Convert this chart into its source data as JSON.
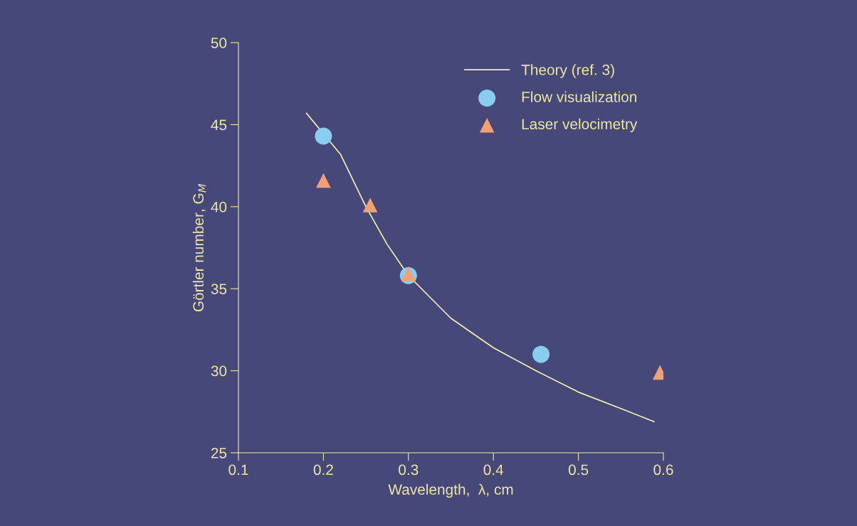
{
  "chart_data": {
    "type": "scatter",
    "xlabel": "Wavelength,  λ, cm",
    "ylabel": "Görtler number, G$_{M}$",
    "xlim": [
      0.1,
      0.6
    ],
    "ylim": [
      25,
      50
    ],
    "xticks": [
      0.1,
      0.2,
      0.3,
      0.4,
      0.5,
      0.6
    ],
    "yticks": [
      25,
      30,
      35,
      40,
      45,
      50
    ],
    "grid": false,
    "legend": "top right",
    "series": [
      {
        "name": "Theory (ref. 3)",
        "type": "line",
        "marker": "none",
        "color": "#f5f0b0",
        "x": [
          0.18,
          0.22,
          0.25,
          0.275,
          0.3,
          0.35,
          0.4,
          0.45,
          0.5,
          0.55,
          0.589
        ],
        "values": [
          45.7,
          43.2,
          40.0,
          37.7,
          35.8,
          33.2,
          31.4,
          30.0,
          28.7,
          27.7,
          26.9
        ]
      },
      {
        "name": "Flow visualization",
        "marker": "circle",
        "color": "#87cef0",
        "x": [
          0.2,
          0.3,
          0.456
        ],
        "values": [
          44.3,
          35.8,
          31.0
        ]
      },
      {
        "name": "Laser velocimetry",
        "marker": "triangle",
        "color": "#f5a070",
        "x": [
          0.2,
          0.255,
          0.3,
          0.596
        ],
        "values": [
          41.6,
          40.1,
          35.9,
          29.9
        ]
      }
    ]
  }
}
